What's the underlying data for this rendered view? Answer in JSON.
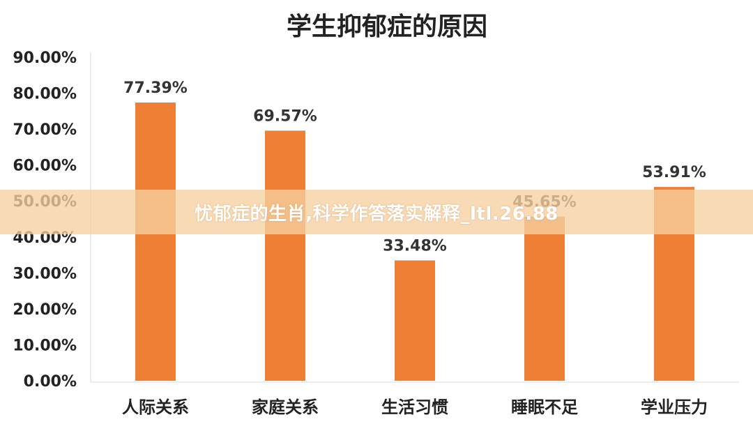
{
  "banner": {
    "text": "忧郁症的生肖,科学作答落实解释_ltl.26.88",
    "color": "#f6d0a0"
  },
  "chart_data": {
    "type": "bar",
    "title": "学生抑郁症的原因",
    "categories": [
      "人际关系",
      "家庭关系",
      "生活习惯",
      "睡眠不足",
      "学业压力"
    ],
    "values": [
      77.39,
      69.57,
      33.48,
      45.65,
      53.91
    ],
    "data_labels": [
      "77.39%",
      "69.57%",
      "33.48%",
      "45.65%",
      "53.91%"
    ],
    "ylim": [
      0,
      90
    ],
    "yticks": [
      0,
      10,
      20,
      30,
      40,
      50,
      60,
      70,
      80,
      90
    ],
    "ytick_labels": [
      "0.00%",
      "10.00%",
      "20.00%",
      "30.00%",
      "40.00%",
      "50.00%",
      "60.00%",
      "70.00%",
      "80.00%",
      "90.00%"
    ],
    "grid": false,
    "legend": "none",
    "bar_color": "#ee7f34"
  }
}
